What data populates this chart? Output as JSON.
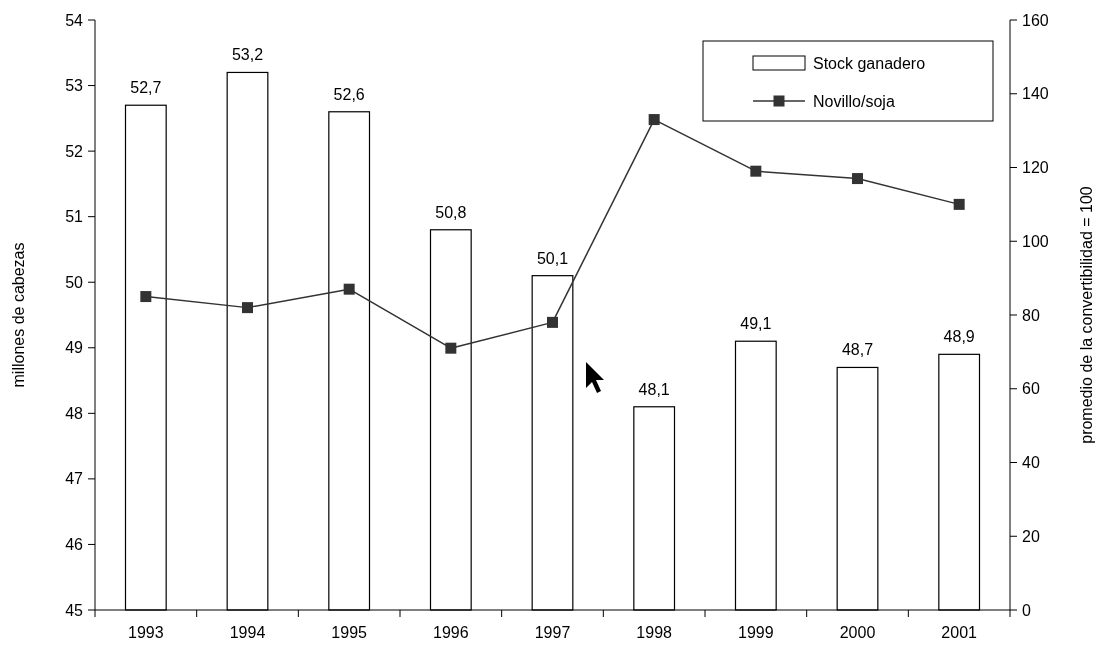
{
  "chart_data": {
    "type": "bar",
    "categories": [
      "1993",
      "1994",
      "1995",
      "1996",
      "1997",
      "1998",
      "1999",
      "2000",
      "2001"
    ],
    "ylabel": "millones de cabezas",
    "y2label": "promedio de la convertibilidad = 100",
    "ylim": [
      45,
      54
    ],
    "yticks": [
      45,
      46,
      47,
      48,
      49,
      50,
      51,
      52,
      53,
      54
    ],
    "y2lim": [
      0,
      160
    ],
    "y2ticks": [
      0,
      20,
      40,
      60,
      80,
      100,
      120,
      140,
      160
    ],
    "series": [
      {
        "name": "Stock ganadero",
        "color": "#ffffff",
        "values": [
          52.7,
          53.2,
          52.6,
          50.8,
          50.1,
          48.1,
          49.1,
          48.7,
          48.9
        ],
        "value_labels": [
          "52,7",
          "53,2",
          "52,6",
          "50,8",
          "50,1",
          "48,1",
          "49,1",
          "48,7",
          "48,9"
        ]
      },
      {
        "name": "Novillo/soja",
        "type": "line",
        "axis": "y2",
        "color": "#333333",
        "values": [
          85,
          82,
          87,
          71,
          78,
          133,
          119,
          117,
          110
        ]
      }
    ],
    "legend": "top right",
    "marker": "square",
    "grid": false
  }
}
